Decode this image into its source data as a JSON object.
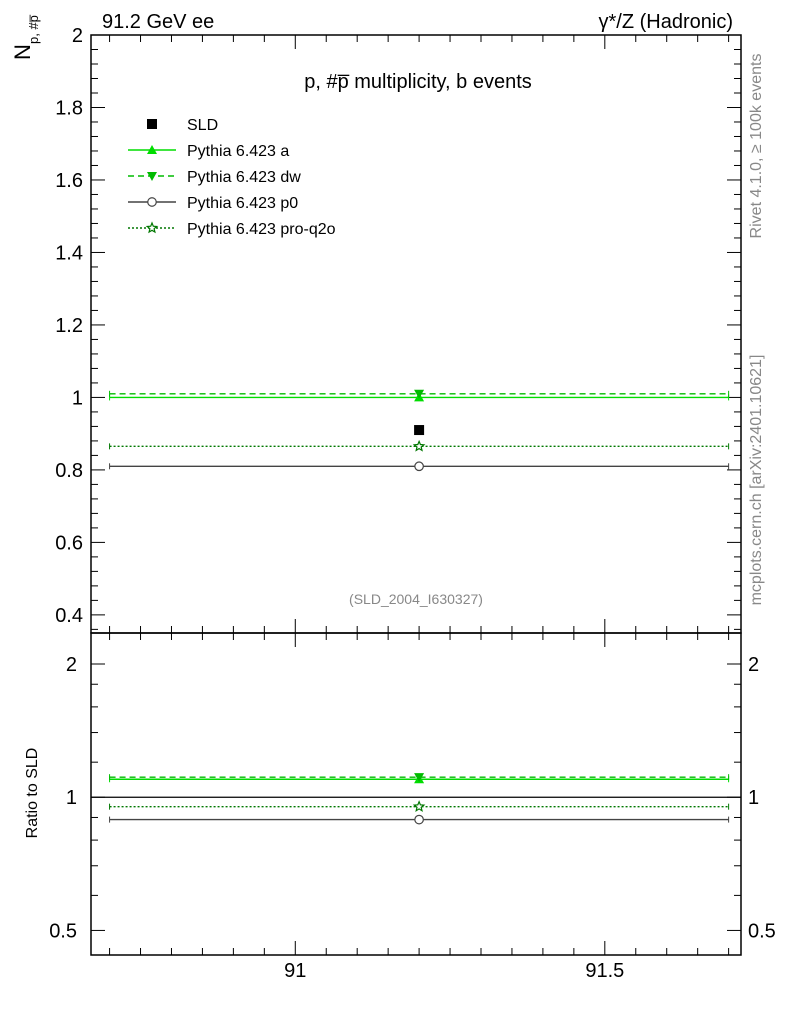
{
  "header": {
    "left": "91.2 GeV ee",
    "right": "γ*/Z (Hadronic)"
  },
  "side_labels": {
    "top": "Rivet 4.1.0, ≥ 100k events",
    "bottom": "mcplots.cern.ch [arXiv:2401.10621]"
  },
  "colors": {
    "data": "#000000",
    "pythia_a": "#00dd00",
    "pythia_dw": "#00bb00",
    "pythia_p0": "#444444",
    "pythia_proq2o": "#007700",
    "watermark": "#888888"
  },
  "chart_data": [
    {
      "type": "scatter",
      "title": "p, #p̅ multiplicity, b events",
      "ylabel_main": "N",
      "ylabel_sub": "p, #p̅",
      "watermark": "(SLD_2004_I630327)",
      "xlim": [
        90.67,
        91.72
      ],
      "ylim": [
        0.35,
        2.0
      ],
      "yticks": [
        0.4,
        0.6,
        0.8,
        1,
        1.2,
        1.4,
        1.6,
        1.8,
        2
      ],
      "ytick_labels": [
        "0.4",
        "0.6",
        "0.8",
        "1",
        "1.2",
        "1.4",
        "1.6",
        "1.8",
        "2"
      ],
      "legend_position": "top-left",
      "series": [
        {
          "name": "SLD",
          "x": 91.2,
          "y": 0.91,
          "style": "data"
        },
        {
          "name": "Pythia 6.423 a",
          "x": 91.2,
          "y": 1.0,
          "x_range": [
            90.7,
            91.7
          ],
          "style": "a"
        },
        {
          "name": "Pythia 6.423 dw",
          "x": 91.2,
          "y": 1.01,
          "x_range": [
            90.7,
            91.7
          ],
          "style": "dw"
        },
        {
          "name": "Pythia 6.423 p0",
          "x": 91.2,
          "y": 0.81,
          "x_range": [
            90.7,
            91.7
          ],
          "style": "p0"
        },
        {
          "name": "Pythia 6.423 pro-q2o",
          "x": 91.2,
          "y": 0.865,
          "x_range": [
            90.7,
            91.7
          ],
          "style": "proq2o"
        }
      ]
    },
    {
      "type": "line",
      "ylabel": "Ratio to SLD",
      "ylim": [
        0.44,
        2.35
      ],
      "yscale": "log",
      "xticks": [
        91,
        91.5
      ],
      "xtick_labels": [
        "91",
        "91.5"
      ],
      "yticks": [
        0.5,
        1,
        2
      ],
      "ytick_labels": [
        "0.5",
        "1",
        "2"
      ],
      "reference": 1,
      "series": [
        {
          "name": "Pythia 6.423 a",
          "x": 91.2,
          "y": 1.098,
          "x_range": [
            90.7,
            91.7
          ],
          "style": "a"
        },
        {
          "name": "Pythia 6.423 dw",
          "x": 91.2,
          "y": 1.11,
          "x_range": [
            90.7,
            91.7
          ],
          "style": "dw"
        },
        {
          "name": "Pythia 6.423 p0",
          "x": 91.2,
          "y": 0.89,
          "x_range": [
            90.7,
            91.7
          ],
          "style": "p0"
        },
        {
          "name": "Pythia 6.423 pro-q2o",
          "x": 91.2,
          "y": 0.952,
          "x_range": [
            90.7,
            91.7
          ],
          "style": "proq2o"
        }
      ]
    }
  ]
}
